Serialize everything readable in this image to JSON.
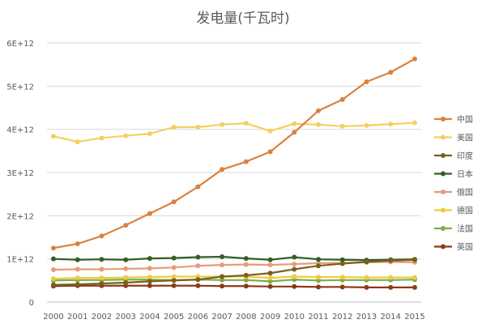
{
  "chart_data": {
    "type": "line",
    "title": "发电量(千瓦时)",
    "xlabel": "",
    "ylabel": "",
    "x": [
      "2000",
      "2001",
      "2002",
      "2003",
      "2004",
      "2005",
      "2006",
      "2007",
      "2008",
      "2009",
      "2010",
      "2011",
      "2012",
      "2013",
      "2014",
      "2015"
    ],
    "ylim": [
      0,
      6000000000000.0
    ],
    "yticks": [
      {
        "value": 0,
        "label": "0"
      },
      {
        "value": 1000000000000.0,
        "label": "1E+12"
      },
      {
        "value": 2000000000000.0,
        "label": "2E+12"
      },
      {
        "value": 3000000000000.0,
        "label": "3E+12"
      },
      {
        "value": 4000000000000.0,
        "label": "4E+12"
      },
      {
        "value": 5000000000000.0,
        "label": "5E+12"
      },
      {
        "value": 6000000000000.0,
        "label": "6E+12"
      }
    ],
    "grid": true,
    "legend_position": "right",
    "series": [
      {
        "name": "中国",
        "color": "#D9823F",
        "values": [
          1250000000000.0,
          1350000000000.0,
          1530000000000.0,
          1780000000000.0,
          2050000000000.0,
          2320000000000.0,
          2670000000000.0,
          3070000000000.0,
          3250000000000.0,
          3480000000000.0,
          3930000000000.0,
          4430000000000.0,
          4690000000000.0,
          5100000000000.0,
          5320000000000.0,
          5630000000000.0
        ]
      },
      {
        "name": "美国",
        "color": "#F4D060",
        "values": [
          3840000000000.0,
          3710000000000.0,
          3800000000000.0,
          3850000000000.0,
          3900000000000.0,
          4050000000000.0,
          4050000000000.0,
          4110000000000.0,
          4140000000000.0,
          3960000000000.0,
          4130000000000.0,
          4110000000000.0,
          4070000000000.0,
          4090000000000.0,
          4120000000000.0,
          4150000000000.0
        ]
      },
      {
        "name": "印度",
        "color": "#7A5F1C",
        "values": [
          400000000000.0,
          410000000000.0,
          430000000000.0,
          450000000000.0,
          480000000000.0,
          500000000000.0,
          520000000000.0,
          590000000000.0,
          620000000000.0,
          670000000000.0,
          760000000000.0,
          840000000000.0,
          890000000000.0,
          930000000000.0,
          960000000000.0,
          980000000000.0
        ]
      },
      {
        "name": "日本",
        "color": "#355E27",
        "values": [
          1000000000000.0,
          980000000000.0,
          990000000000.0,
          980000000000.0,
          1010000000000.0,
          1020000000000.0,
          1040000000000.0,
          1050000000000.0,
          1010000000000.0,
          980000000000.0,
          1040000000000.0,
          990000000000.0,
          980000000000.0,
          970000000000.0,
          980000000000.0,
          990000000000.0
        ]
      },
      {
        "name": "俄国",
        "color": "#E79C79",
        "values": [
          750000000000.0,
          760000000000.0,
          760000000000.0,
          770000000000.0,
          780000000000.0,
          800000000000.0,
          840000000000.0,
          860000000000.0,
          870000000000.0,
          860000000000.0,
          880000000000.0,
          900000000000.0,
          910000000000.0,
          920000000000.0,
          930000000000.0,
          920000000000.0
        ]
      },
      {
        "name": "德国",
        "color": "#EFCB3F",
        "values": [
          540000000000.0,
          560000000000.0,
          560000000000.0,
          570000000000.0,
          580000000000.0,
          590000000000.0,
          590000000000.0,
          590000000000.0,
          590000000000.0,
          560000000000.0,
          590000000000.0,
          580000000000.0,
          580000000000.0,
          570000000000.0,
          570000000000.0,
          570000000000.0
        ]
      },
      {
        "name": "法国",
        "color": "#7AAE4C",
        "values": [
          500000000000.0,
          510000000000.0,
          510000000000.0,
          520000000000.0,
          520000000000.0,
          510000000000.0,
          520000000000.0,
          510000000000.0,
          510000000000.0,
          480000000000.0,
          520000000000.0,
          500000000000.0,
          510000000000.0,
          510000000000.0,
          510000000000.0,
          520000000000.0
        ]
      },
      {
        "name": "英国",
        "color": "#8B3A1A",
        "values": [
          370000000000.0,
          380000000000.0,
          380000000000.0,
          380000000000.0,
          380000000000.0,
          380000000000.0,
          380000000000.0,
          370000000000.0,
          370000000000.0,
          360000000000.0,
          360000000000.0,
          350000000000.0,
          350000000000.0,
          340000000000.0,
          340000000000.0,
          340000000000.0
        ]
      }
    ]
  }
}
